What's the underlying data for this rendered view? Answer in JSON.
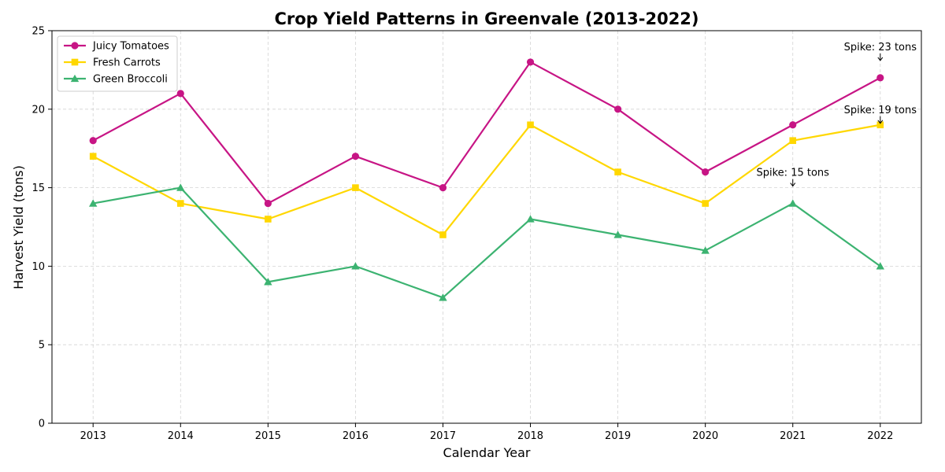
{
  "chart_data": {
    "type": "line",
    "title": "Crop Yield Patterns in Greenvale (2013-2022)",
    "xlabel": "Calendar Year",
    "ylabel": "Harvest Yield (tons)",
    "x": [
      2013,
      2014,
      2015,
      2016,
      2017,
      2018,
      2019,
      2020,
      2021,
      2022
    ],
    "ylim": [
      0,
      25
    ],
    "yticks": [
      0,
      5,
      10,
      15,
      20,
      25
    ],
    "grid": true,
    "legend_position": "upper-left",
    "series": [
      {
        "name": "Juicy Tomatoes",
        "color": "#c71585",
        "marker": "circle",
        "values": [
          18,
          21,
          14,
          17,
          15,
          23,
          20,
          16,
          19,
          22
        ]
      },
      {
        "name": "Fresh Carrots",
        "color": "#ffd700",
        "marker": "square",
        "values": [
          17,
          14,
          13,
          15,
          12,
          19,
          16,
          14,
          18,
          19
        ]
      },
      {
        "name": "Green Broccoli",
        "color": "#3cb371",
        "marker": "triangle",
        "values": [
          14,
          15,
          9,
          10,
          8,
          13,
          12,
          11,
          14,
          10
        ]
      }
    ],
    "annotations": [
      {
        "text": "Spike: 23 tons",
        "x": 2022,
        "y": 23
      },
      {
        "text": "Spike: 19 tons",
        "x": 2022,
        "y": 19
      },
      {
        "text": "Spike: 15 tons",
        "x": 2021,
        "y": 15
      }
    ]
  }
}
